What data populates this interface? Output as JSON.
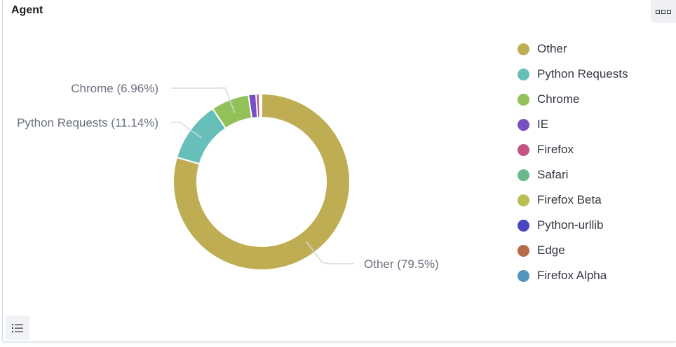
{
  "panel": {
    "title": "Agent"
  },
  "icons": {
    "options": "options-icon",
    "legend_toggle": "list-icon"
  },
  "chart_data": {
    "type": "pie",
    "donut": true,
    "title": "Agent",
    "slices": [
      {
        "name": "Other",
        "percent": 79.5,
        "color": "#bead53",
        "label": "Other (79.5%)"
      },
      {
        "name": "Python Requests",
        "percent": 11.14,
        "color": "#66bfb9",
        "label": "Python Requests (11.14%)"
      },
      {
        "name": "Chrome",
        "percent": 6.96,
        "color": "#92c15a",
        "label": "Chrome (6.96%)"
      },
      {
        "name": "IE",
        "percent": 1.4,
        "color": "#7650c1",
        "label": ""
      },
      {
        "name": "Firefox",
        "percent": 0.6,
        "color": "#c25383",
        "label": ""
      },
      {
        "name": "Safari",
        "percent": 0.2,
        "color": "#6bb98b",
        "label": ""
      },
      {
        "name": "Firefox Beta",
        "percent": 0.1,
        "color": "#b9bd53",
        "label": ""
      },
      {
        "name": "Python-urllib",
        "percent": 0.05,
        "color": "#4a46c1",
        "label": ""
      },
      {
        "name": "Edge",
        "percent": 0.03,
        "color": "#b76a48",
        "label": ""
      },
      {
        "name": "Firefox Alpha",
        "percent": 0.02,
        "color": "#5395bf",
        "label": ""
      }
    ],
    "legend_position": "right"
  }
}
